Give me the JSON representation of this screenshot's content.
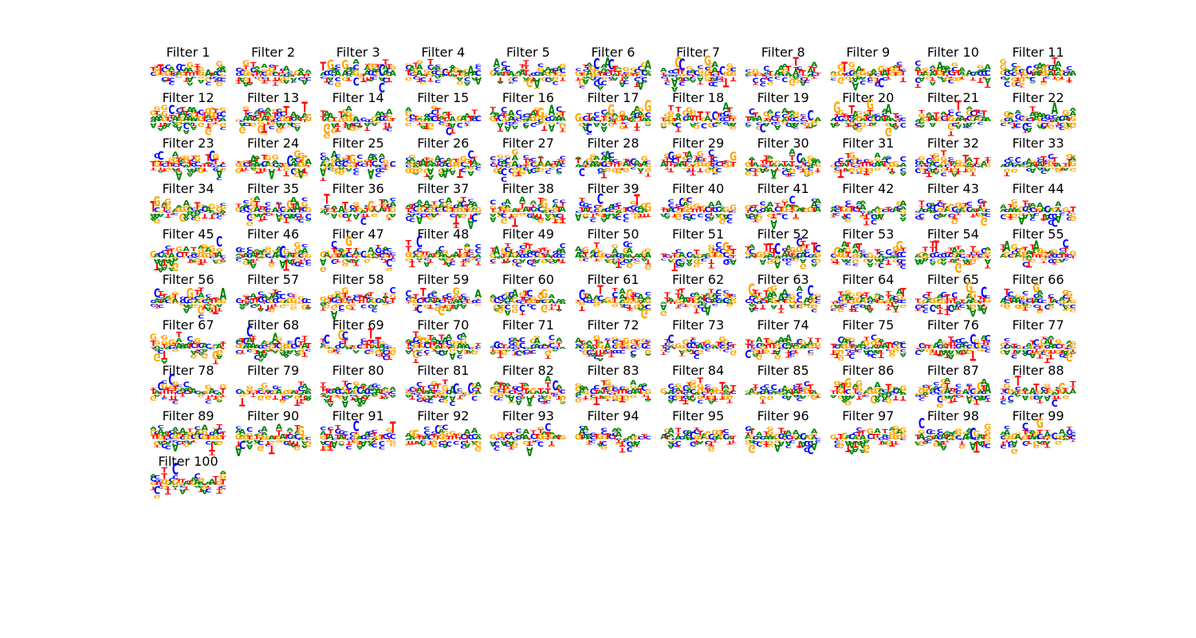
{
  "figure": {
    "background": "#ffffff",
    "bases": [
      "A",
      "C",
      "G",
      "T"
    ],
    "colors": {
      "A": "#008000",
      "C": "#0000ff",
      "G": "#ffa500",
      "T": "#ff0000"
    },
    "grid_columns": 11,
    "positions_per_filter": 20
  },
  "chart_data": {
    "type": "sequence-logo-grid",
    "count": 100,
    "panels": [
      {
        "title": "Filter 1"
      },
      {
        "title": "Filter 2"
      },
      {
        "title": "Filter 3"
      },
      {
        "title": "Filter 4"
      },
      {
        "title": "Filter 5"
      },
      {
        "title": "Filter 6"
      },
      {
        "title": "Filter 7"
      },
      {
        "title": "Filter 8"
      },
      {
        "title": "Filter 9"
      },
      {
        "title": "Filter 10"
      },
      {
        "title": "Filter 11"
      },
      {
        "title": "Filter 12"
      },
      {
        "title": "Filter 13"
      },
      {
        "title": "Filter 14"
      },
      {
        "title": "Filter 15"
      },
      {
        "title": "Filter 16"
      },
      {
        "title": "Filter 17"
      },
      {
        "title": "Filter 18"
      },
      {
        "title": "Filter 19"
      },
      {
        "title": "Filter 20"
      },
      {
        "title": "Filter 21"
      },
      {
        "title": "Filter 22"
      },
      {
        "title": "Filter 23"
      },
      {
        "title": "Filter 24"
      },
      {
        "title": "Filter 25"
      },
      {
        "title": "Filter 26"
      },
      {
        "title": "Filter 27"
      },
      {
        "title": "Filter 28"
      },
      {
        "title": "Filter 29"
      },
      {
        "title": "Filter 30"
      },
      {
        "title": "Filter 31"
      },
      {
        "title": "Filter 32"
      },
      {
        "title": "Filter 33"
      },
      {
        "title": "Filter 34"
      },
      {
        "title": "Filter 35"
      },
      {
        "title": "Filter 36"
      },
      {
        "title": "Filter 37"
      },
      {
        "title": "Filter 38"
      },
      {
        "title": "Filter 39"
      },
      {
        "title": "Filter 40"
      },
      {
        "title": "Filter 41"
      },
      {
        "title": "Filter 42"
      },
      {
        "title": "Filter 43"
      },
      {
        "title": "Filter 44"
      },
      {
        "title": "Filter 45"
      },
      {
        "title": "Filter 46"
      },
      {
        "title": "Filter 47"
      },
      {
        "title": "Filter 48"
      },
      {
        "title": "Filter 49"
      },
      {
        "title": "Filter 50"
      },
      {
        "title": "Filter 51"
      },
      {
        "title": "Filter 52"
      },
      {
        "title": "Filter 53"
      },
      {
        "title": "Filter 54"
      },
      {
        "title": "Filter 55"
      },
      {
        "title": "Filter 56"
      },
      {
        "title": "Filter 57"
      },
      {
        "title": "Filter 58"
      },
      {
        "title": "Filter 59"
      },
      {
        "title": "Filter 60"
      },
      {
        "title": "Filter 61"
      },
      {
        "title": "Filter 62"
      },
      {
        "title": "Filter 63"
      },
      {
        "title": "Filter 64"
      },
      {
        "title": "Filter 65"
      },
      {
        "title": "Filter 66"
      },
      {
        "title": "Filter 67"
      },
      {
        "title": "Filter 68"
      },
      {
        "title": "Filter 69"
      },
      {
        "title": "Filter 70"
      },
      {
        "title": "Filter 71"
      },
      {
        "title": "Filter 72"
      },
      {
        "title": "Filter 73"
      },
      {
        "title": "Filter 74"
      },
      {
        "title": "Filter 75"
      },
      {
        "title": "Filter 76"
      },
      {
        "title": "Filter 77"
      },
      {
        "title": "Filter 78"
      },
      {
        "title": "Filter 79"
      },
      {
        "title": "Filter 80"
      },
      {
        "title": "Filter 81"
      },
      {
        "title": "Filter 82"
      },
      {
        "title": "Filter 83"
      },
      {
        "title": "Filter 84"
      },
      {
        "title": "Filter 85"
      },
      {
        "title": "Filter 86"
      },
      {
        "title": "Filter 87"
      },
      {
        "title": "Filter 88"
      },
      {
        "title": "Filter 89"
      },
      {
        "title": "Filter 90"
      },
      {
        "title": "Filter 91"
      },
      {
        "title": "Filter 92"
      },
      {
        "title": "Filter 93"
      },
      {
        "title": "Filter 94"
      },
      {
        "title": "Filter 95"
      },
      {
        "title": "Filter 96"
      },
      {
        "title": "Filter 97"
      },
      {
        "title": "Filter 98"
      },
      {
        "title": "Filter 99"
      },
      {
        "title": "Filter 100"
      }
    ]
  }
}
